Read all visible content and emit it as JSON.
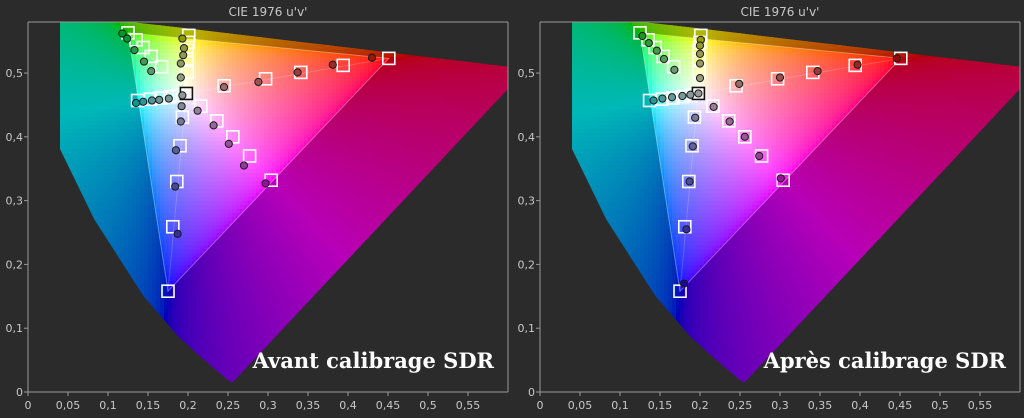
{
  "chart_data": [
    {
      "type": "scatter",
      "title": "CIE 1976 u'v'",
      "annotation": "Avant calibrage SDR",
      "xlim": [
        0,
        0.6
      ],
      "ylim": [
        0,
        0.58
      ],
      "x_ticks": [
        "0",
        "0,05",
        "0,1",
        "0,15",
        "0,2",
        "0,25",
        "0,3",
        "0,35",
        "0,4",
        "0,45",
        "0,5",
        "0,55"
      ],
      "y_ticks": [
        "0",
        "0,1",
        "0,2",
        "0,3",
        "0,4",
        "0,5"
      ],
      "grid": false,
      "legend": "none",
      "gamut_triangle": [
        [
          0.451,
          0.523
        ],
        [
          0.125,
          0.563
        ],
        [
          0.175,
          0.158
        ]
      ],
      "targets": [
        [
          0.451,
          0.523
        ],
        [
          0.394,
          0.512
        ],
        [
          0.341,
          0.501
        ],
        [
          0.297,
          0.491
        ],
        [
          0.245,
          0.48
        ],
        [
          0.125,
          0.563
        ],
        [
          0.135,
          0.552
        ],
        [
          0.144,
          0.54
        ],
        [
          0.154,
          0.526
        ],
        [
          0.167,
          0.51
        ],
        [
          0.175,
          0.158
        ],
        [
          0.181,
          0.259
        ],
        [
          0.186,
          0.33
        ],
        [
          0.19,
          0.386
        ],
        [
          0.193,
          0.431
        ],
        [
          0.201,
          0.559
        ],
        [
          0.2,
          0.548
        ],
        [
          0.199,
          0.536
        ],
        [
          0.199,
          0.522
        ],
        [
          0.199,
          0.501
        ],
        [
          0.304,
          0.332
        ],
        [
          0.277,
          0.37
        ],
        [
          0.256,
          0.4
        ],
        [
          0.236,
          0.425
        ],
        [
          0.216,
          0.448
        ],
        [
          0.137,
          0.457
        ],
        [
          0.153,
          0.459
        ],
        [
          0.166,
          0.461
        ],
        [
          0.178,
          0.463
        ],
        [
          0.189,
          0.465
        ],
        [
          0.198,
          0.468
        ]
      ],
      "measured": [
        [
          0.43,
          0.524
        ],
        [
          0.381,
          0.513
        ],
        [
          0.337,
          0.501
        ],
        [
          0.288,
          0.486
        ],
        [
          0.245,
          0.478
        ],
        [
          0.118,
          0.562
        ],
        [
          0.124,
          0.554
        ],
        [
          0.133,
          0.536
        ],
        [
          0.145,
          0.518
        ],
        [
          0.154,
          0.503
        ],
        [
          0.187,
          0.248
        ],
        [
          0.184,
          0.322
        ],
        [
          0.185,
          0.379
        ],
        [
          0.191,
          0.424
        ],
        [
          0.192,
          0.448
        ],
        [
          0.193,
          0.554
        ],
        [
          0.195,
          0.539
        ],
        [
          0.194,
          0.528
        ],
        [
          0.191,
          0.515
        ],
        [
          0.191,
          0.493
        ],
        [
          0.297,
          0.327
        ],
        [
          0.27,
          0.355
        ],
        [
          0.251,
          0.389
        ],
        [
          0.232,
          0.418
        ],
        [
          0.212,
          0.441
        ],
        [
          0.135,
          0.453
        ],
        [
          0.144,
          0.455
        ],
        [
          0.155,
          0.457
        ],
        [
          0.164,
          0.458
        ],
        [
          0.176,
          0.46
        ],
        [
          0.193,
          0.465
        ]
      ]
    },
    {
      "type": "scatter",
      "title": "CIE 1976 u'v'",
      "annotation": "Après calibrage SDR",
      "xlim": [
        0,
        0.6
      ],
      "ylim": [
        0,
        0.58
      ],
      "x_ticks": [
        "0",
        "0,05",
        "0,1",
        "0,15",
        "0,2",
        "0,25",
        "0,3",
        "0,35",
        "0,4",
        "0,45",
        "0,5",
        "0,55"
      ],
      "y_ticks": [
        "0",
        "0,1",
        "0,2",
        "0,3",
        "0,4",
        "0,5"
      ],
      "grid": false,
      "legend": "none",
      "gamut_triangle": [
        [
          0.451,
          0.523
        ],
        [
          0.125,
          0.563
        ],
        [
          0.175,
          0.158
        ]
      ],
      "targets": [
        [
          0.451,
          0.523
        ],
        [
          0.394,
          0.512
        ],
        [
          0.341,
          0.501
        ],
        [
          0.297,
          0.491
        ],
        [
          0.245,
          0.48
        ],
        [
          0.125,
          0.563
        ],
        [
          0.135,
          0.552
        ],
        [
          0.144,
          0.54
        ],
        [
          0.154,
          0.526
        ],
        [
          0.167,
          0.51
        ],
        [
          0.175,
          0.158
        ],
        [
          0.181,
          0.259
        ],
        [
          0.186,
          0.33
        ],
        [
          0.19,
          0.386
        ],
        [
          0.193,
          0.431
        ],
        [
          0.201,
          0.559
        ],
        [
          0.2,
          0.548
        ],
        [
          0.199,
          0.536
        ],
        [
          0.199,
          0.522
        ],
        [
          0.199,
          0.501
        ],
        [
          0.304,
          0.332
        ],
        [
          0.277,
          0.37
        ],
        [
          0.256,
          0.4
        ],
        [
          0.236,
          0.425
        ],
        [
          0.216,
          0.448
        ],
        [
          0.137,
          0.457
        ],
        [
          0.153,
          0.459
        ],
        [
          0.166,
          0.461
        ],
        [
          0.178,
          0.463
        ],
        [
          0.189,
          0.465
        ],
        [
          0.198,
          0.468
        ]
      ],
      "measured": [
        [
          0.446,
          0.523
        ],
        [
          0.397,
          0.513
        ],
        [
          0.347,
          0.503
        ],
        [
          0.3,
          0.493
        ],
        [
          0.249,
          0.483
        ],
        [
          0.128,
          0.558
        ],
        [
          0.136,
          0.547
        ],
        [
          0.146,
          0.535
        ],
        [
          0.155,
          0.522
        ],
        [
          0.168,
          0.505
        ],
        [
          0.18,
          0.17
        ],
        [
          0.183,
          0.255
        ],
        [
          0.187,
          0.33
        ],
        [
          0.191,
          0.385
        ],
        [
          0.194,
          0.43
        ],
        [
          0.201,
          0.552
        ],
        [
          0.2,
          0.543
        ],
        [
          0.2,
          0.53
        ],
        [
          0.2,
          0.515
        ],
        [
          0.2,
          0.492
        ],
        [
          0.301,
          0.335
        ],
        [
          0.274,
          0.37
        ],
        [
          0.256,
          0.4
        ],
        [
          0.237,
          0.424
        ],
        [
          0.217,
          0.447
        ],
        [
          0.142,
          0.457
        ],
        [
          0.153,
          0.46
        ],
        [
          0.165,
          0.462
        ],
        [
          0.178,
          0.464
        ],
        [
          0.188,
          0.466
        ],
        [
          0.198,
          0.468
        ]
      ]
    }
  ]
}
